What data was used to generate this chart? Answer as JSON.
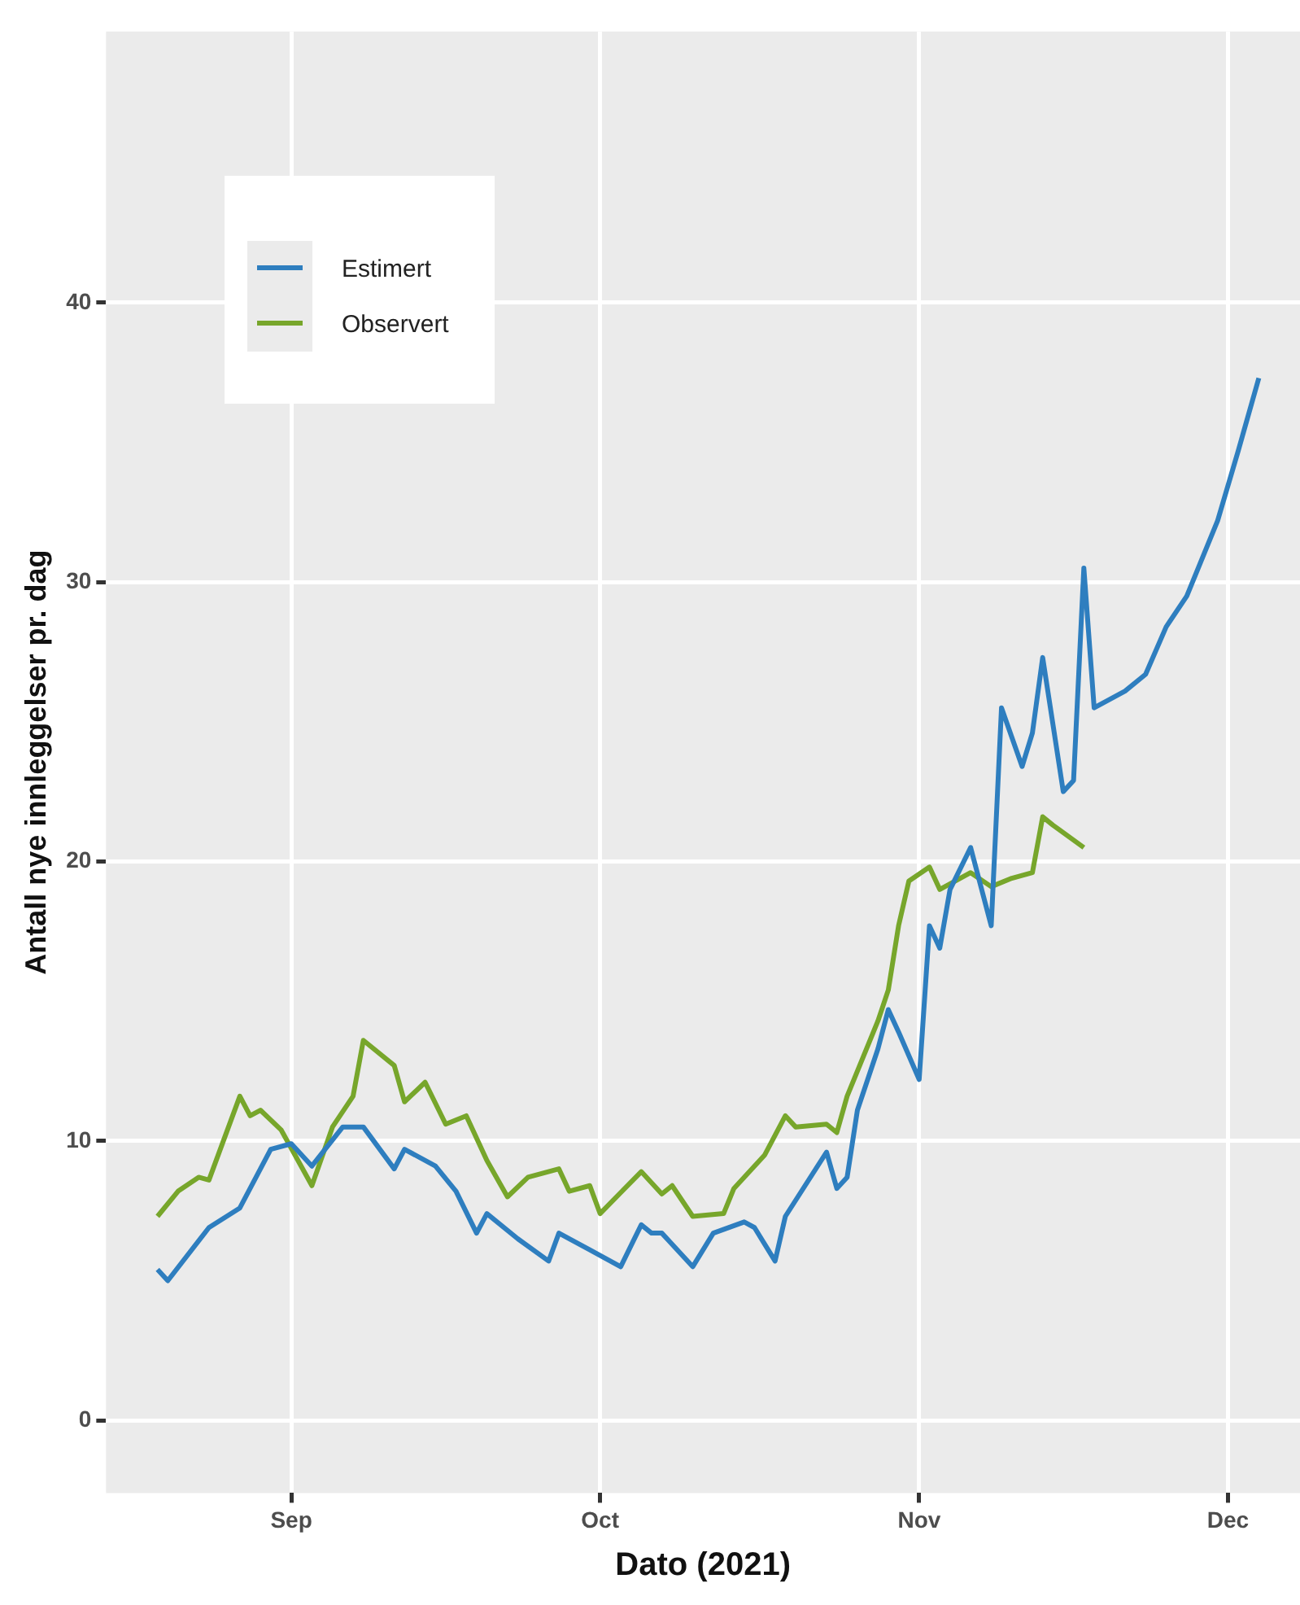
{
  "chart_data": {
    "type": "line",
    "xlabel": "Dato (2021)",
    "ylabel": "Antall nye innleggelser pr. dag",
    "xlim": [
      "2021-08-14",
      "2021-12-08"
    ],
    "ylim": [
      -2.6,
      49.7
    ],
    "xticks": [
      {
        "value": "2021-09-01",
        "label": "Sep"
      },
      {
        "value": "2021-10-01",
        "label": "Oct"
      },
      {
        "value": "2021-11-01",
        "label": "Nov"
      },
      {
        "value": "2021-12-01",
        "label": "Dec"
      }
    ],
    "yticks": [
      0,
      10,
      20,
      30,
      40
    ],
    "grid": true,
    "legend": "top left",
    "marker": "none",
    "line_style": "solid",
    "series": [
      {
        "name": "Estimert",
        "color": "#2e7ebf",
        "x": [
          "2021-08-19",
          "2021-08-20",
          "2021-08-24",
          "2021-08-27",
          "2021-08-30",
          "2021-09-01",
          "2021-09-03",
          "2021-09-06",
          "2021-09-08",
          "2021-09-11",
          "2021-09-12",
          "2021-09-15",
          "2021-09-17",
          "2021-09-19",
          "2021-09-20",
          "2021-09-23",
          "2021-09-26",
          "2021-09-27",
          "2021-09-30",
          "2021-10-03",
          "2021-10-05",
          "2021-10-06",
          "2021-10-07",
          "2021-10-10",
          "2021-10-12",
          "2021-10-15",
          "2021-10-16",
          "2021-10-18",
          "2021-10-19",
          "2021-10-23",
          "2021-10-24",
          "2021-10-25",
          "2021-10-26",
          "2021-10-28",
          "2021-10-29",
          "2021-10-30",
          "2021-11-01",
          "2021-11-02",
          "2021-11-03",
          "2021-11-04",
          "2021-11-06",
          "2021-11-08",
          "2021-11-09",
          "2021-11-11",
          "2021-11-12",
          "2021-11-13",
          "2021-11-15",
          "2021-11-16",
          "2021-11-17",
          "2021-11-18",
          "2021-11-21",
          "2021-11-23",
          "2021-11-25",
          "2021-11-27",
          "2021-11-30",
          "2021-12-02",
          "2021-12-04"
        ],
        "values": [
          5.4,
          5.0,
          6.9,
          7.6,
          9.7,
          9.9,
          9.1,
          10.5,
          10.5,
          9.0,
          9.7,
          9.1,
          8.2,
          6.7,
          7.4,
          6.5,
          5.7,
          6.7,
          6.1,
          5.5,
          7.0,
          6.7,
          6.7,
          5.5,
          6.7,
          7.1,
          6.9,
          5.7,
          7.3,
          9.6,
          8.3,
          8.7,
          11.1,
          13.3,
          14.7,
          13.9,
          12.2,
          17.7,
          16.9,
          19.0,
          20.5,
          17.7,
          25.5,
          23.4,
          24.6,
          27.3,
          22.5,
          22.9,
          30.5,
          25.5,
          26.1,
          26.7,
          28.4,
          29.5,
          32.2,
          34.7,
          37.3
        ]
      },
      {
        "name": "Observert",
        "color": "#77a62b",
        "x": [
          "2021-08-19",
          "2021-08-21",
          "2021-08-23",
          "2021-08-24",
          "2021-08-27",
          "2021-08-28",
          "2021-08-29",
          "2021-08-31",
          "2021-09-03",
          "2021-09-05",
          "2021-09-07",
          "2021-09-08",
          "2021-09-11",
          "2021-09-12",
          "2021-09-14",
          "2021-09-16",
          "2021-09-18",
          "2021-09-20",
          "2021-09-22",
          "2021-09-24",
          "2021-09-27",
          "2021-09-28",
          "2021-09-30",
          "2021-10-01",
          "2021-10-05",
          "2021-10-07",
          "2021-10-08",
          "2021-10-10",
          "2021-10-13",
          "2021-10-14",
          "2021-10-17",
          "2021-10-19",
          "2021-10-20",
          "2021-10-23",
          "2021-10-24",
          "2021-10-25",
          "2021-10-28",
          "2021-10-29",
          "2021-10-30",
          "2021-10-31",
          "2021-11-02",
          "2021-11-03",
          "2021-11-06",
          "2021-11-08",
          "2021-11-10",
          "2021-11-12",
          "2021-11-13",
          "2021-11-14",
          "2021-11-17"
        ],
        "values": [
          7.3,
          8.2,
          8.7,
          8.6,
          11.6,
          10.9,
          11.1,
          10.4,
          8.4,
          10.5,
          11.6,
          13.6,
          12.7,
          11.4,
          12.1,
          10.6,
          10.9,
          9.3,
          8.0,
          8.7,
          9.0,
          8.2,
          8.4,
          7.4,
          8.9,
          8.1,
          8.4,
          7.3,
          7.4,
          8.3,
          9.5,
          10.9,
          10.5,
          10.6,
          10.3,
          11.6,
          14.3,
          15.4,
          17.7,
          19.3,
          19.8,
          19.0,
          19.6,
          19.1,
          19.4,
          19.6,
          21.6,
          21.3,
          20.5
        ]
      }
    ]
  }
}
